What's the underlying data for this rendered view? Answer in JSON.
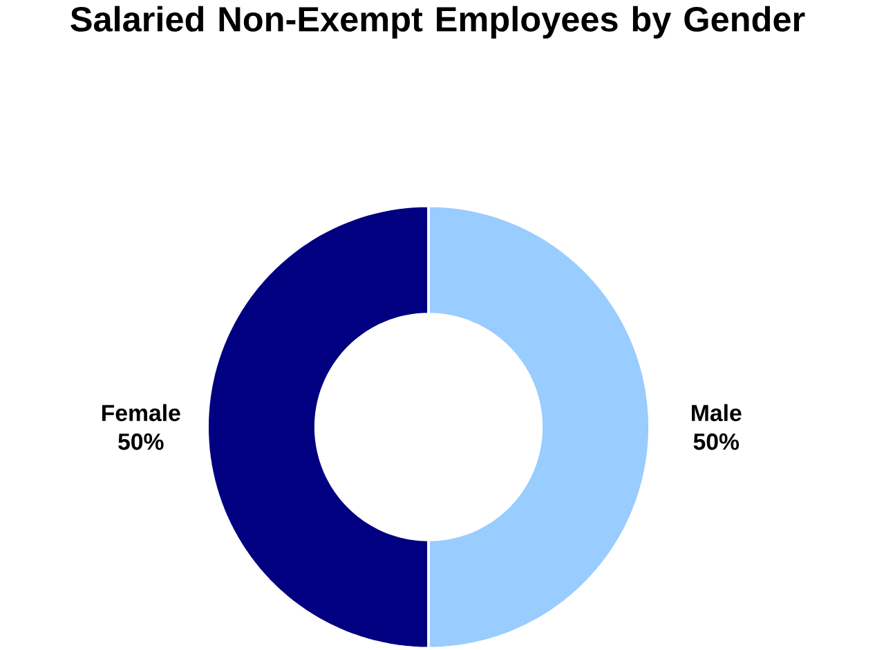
{
  "chart_data": {
    "type": "donut",
    "title": "Salaried Non-Exempt Employees by Gender",
    "categories": [
      "Male",
      "Female"
    ],
    "values": [
      50,
      50
    ],
    "colors": [
      "#99ccff",
      "#000080"
    ],
    "value_labels": [
      "50%",
      "50%"
    ]
  }
}
